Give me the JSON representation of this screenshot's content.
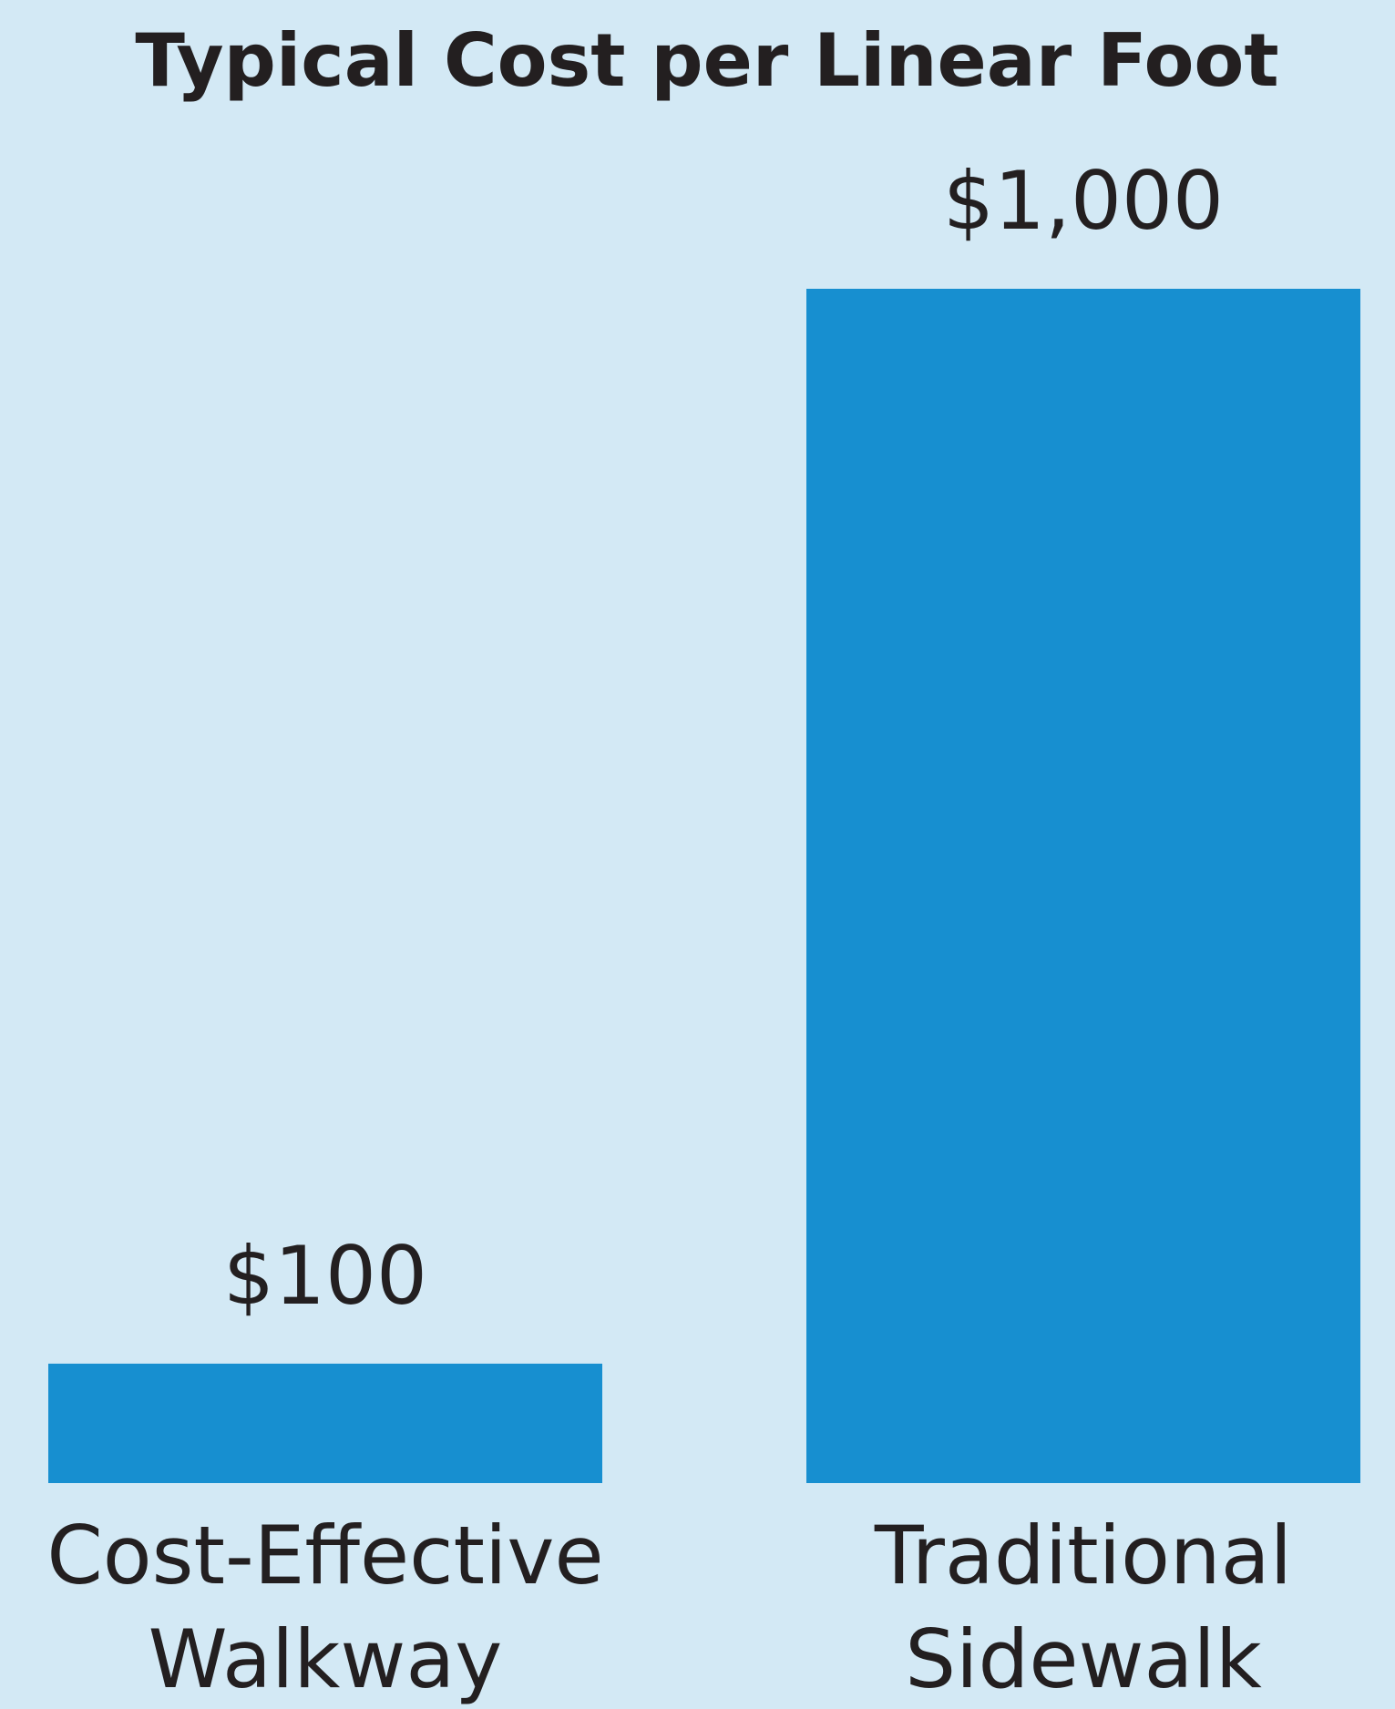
{
  "chart_data": {
    "type": "bar",
    "title": "Typical Cost per Linear Foot",
    "categories": [
      "Cost-Effective Walkway",
      "Traditional Sidewalk"
    ],
    "values": [
      100,
      1000
    ],
    "value_labels": [
      "$100",
      "$1,000"
    ],
    "color": "#178fd0"
  }
}
